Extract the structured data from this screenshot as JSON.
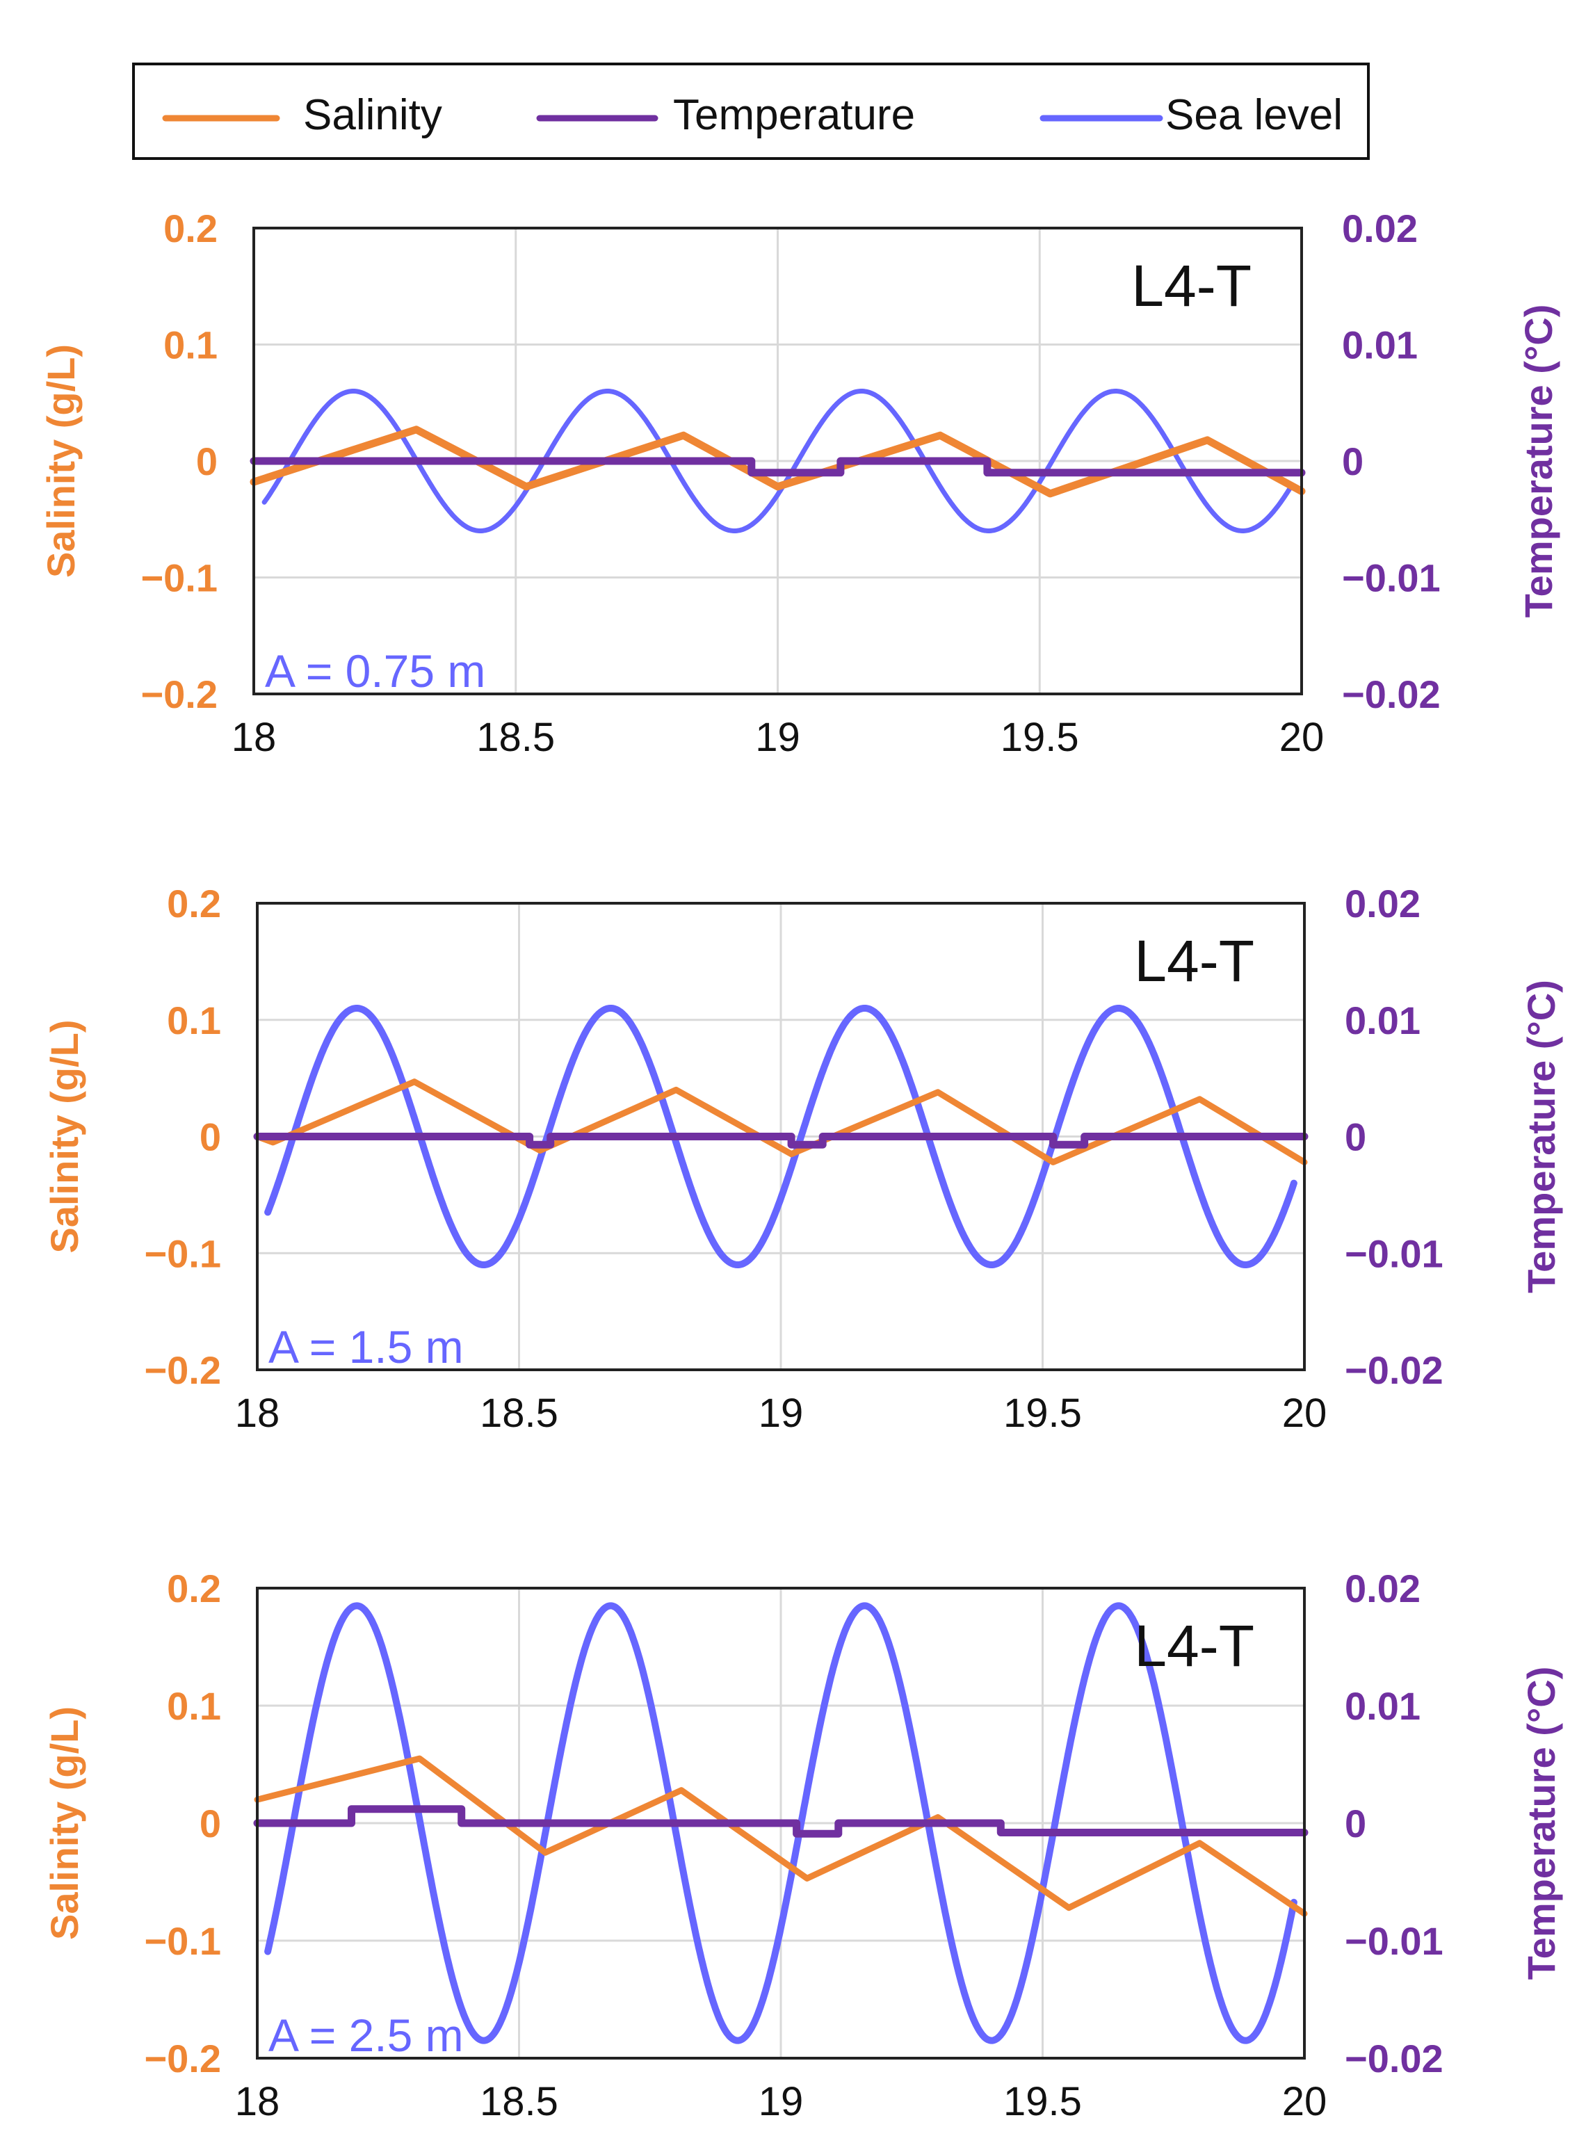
{
  "colors": {
    "salinity": "#ef8634",
    "temperature": "#7030a0",
    "sea_level": "#6666ff",
    "grid": "#d9d9d9",
    "frame": "#222222",
    "panel_label": "#111111"
  },
  "legend": {
    "items": [
      {
        "key": "salinity",
        "label": "Salinity"
      },
      {
        "key": "temperature",
        "label": "Temperature"
      },
      {
        "key": "sea_level",
        "label": "Sea level"
      }
    ]
  },
  "chart_data": [
    {
      "type": "line",
      "panel_label": "L4-T",
      "amplitude_label": "A = 0.75 m",
      "ylabel_left": "Salinity (g/L)",
      "ylabel_right": "Temperature (°C)",
      "xlim": [
        18,
        20
      ],
      "ylim_left": [
        -0.2,
        0.2
      ],
      "ylim_right": [
        -0.02,
        0.02
      ],
      "x_ticks": [
        "18",
        "18.5",
        "19",
        "19.5",
        "20"
      ],
      "left_ticks": [
        "0.2",
        "0.1",
        "0",
        "−0.1",
        "−0.2"
      ],
      "right_ticks": [
        "0.02",
        "0.01",
        "0",
        "−0.01",
        "−0.02"
      ],
      "grid": true,
      "series": [
        {
          "name": "Salinity",
          "axis": "left",
          "x": [
            18.0,
            18.31,
            18.52,
            18.82,
            19.0,
            19.31,
            19.52,
            19.82,
            20.0
          ],
          "y": [
            -0.018,
            0.027,
            -0.022,
            0.022,
            -0.022,
            0.022,
            -0.028,
            0.018,
            -0.026
          ]
        },
        {
          "name": "Temperature",
          "axis": "right",
          "x": [
            18.0,
            18.95,
            18.95,
            19.12,
            19.12,
            19.4,
            19.4,
            20.0
          ],
          "y": [
            0.0,
            0.0,
            -0.001,
            -0.001,
            0.0,
            0.0,
            -0.001,
            -0.001
          ]
        },
        {
          "name": "Sea level",
          "axis": "left",
          "amplitude": 0.06,
          "period": 0.485,
          "crest_x": 18.19,
          "x_range": [
            18.02,
            19.98
          ]
        }
      ]
    },
    {
      "type": "line",
      "panel_label": "L4-T",
      "amplitude_label": "A = 1.5 m",
      "ylabel_left": "Salinity (g/L)",
      "ylabel_right": "Temperature (°C)",
      "xlim": [
        18,
        20
      ],
      "ylim_left": [
        -0.2,
        0.2
      ],
      "ylim_right": [
        -0.02,
        0.02
      ],
      "x_ticks": [
        "18",
        "18.5",
        "19",
        "19.5",
        "20"
      ],
      "left_ticks": [
        "0.2",
        "0.1",
        "0",
        "−0.1",
        "−0.2"
      ],
      "right_ticks": [
        "0.02",
        "0.01",
        "0",
        "−0.01",
        "−0.02"
      ],
      "grid": true,
      "series": [
        {
          "name": "Salinity",
          "axis": "left",
          "x": [
            18.0,
            18.03,
            18.3,
            18.54,
            18.8,
            19.02,
            19.3,
            19.52,
            19.8,
            20.0
          ],
          "y": [
            0.0,
            -0.005,
            0.047,
            -0.012,
            0.04,
            -0.015,
            0.038,
            -0.022,
            0.032,
            -0.022
          ]
        },
        {
          "name": "Temperature",
          "axis": "right",
          "x": [
            18.0,
            18.52,
            18.52,
            18.56,
            18.56,
            19.02,
            19.02,
            19.08,
            19.08,
            19.52,
            19.52,
            19.58,
            19.58,
            20.0
          ],
          "y": [
            0.0,
            0.0,
            -0.0007,
            -0.0007,
            0.0,
            0.0,
            -0.0007,
            -0.0007,
            0.0,
            0.0,
            -0.0007,
            -0.0007,
            0.0,
            0.0
          ]
        },
        {
          "name": "Sea level",
          "axis": "left",
          "amplitude": 0.11,
          "period": 0.485,
          "crest_x": 18.19,
          "x_range": [
            18.02,
            19.98
          ]
        }
      ]
    },
    {
      "type": "line",
      "panel_label": "L4-T",
      "amplitude_label": "A = 2.5 m",
      "ylabel_left": "Salinity (g/L)",
      "ylabel_right": "Temperature (°C)",
      "xlim": [
        18,
        20
      ],
      "ylim_left": [
        -0.2,
        0.2
      ],
      "ylim_right": [
        -0.02,
        0.02
      ],
      "x_ticks": [
        "18",
        "18.5",
        "19",
        "19.5",
        "20"
      ],
      "left_ticks": [
        "0.2",
        "0.1",
        "0",
        "−0.1",
        "−0.2"
      ],
      "right_ticks": [
        "0.02",
        "0.01",
        "0",
        "−0.01",
        "−0.02"
      ],
      "grid": true,
      "series": [
        {
          "name": "Salinity",
          "axis": "left",
          "x": [
            18.0,
            18.31,
            18.55,
            18.81,
            19.05,
            19.3,
            19.55,
            19.8,
            20.0
          ],
          "y": [
            0.02,
            0.055,
            -0.025,
            0.028,
            -0.047,
            0.005,
            -0.072,
            -0.017,
            -0.077
          ]
        },
        {
          "name": "Temperature",
          "axis": "right",
          "x": [
            18.0,
            18.18,
            18.18,
            18.39,
            18.39,
            19.03,
            19.03,
            19.11,
            19.11,
            19.42,
            19.42,
            20.0
          ],
          "y": [
            0.0,
            0.0,
            0.0012,
            0.0012,
            0.0,
            0.0,
            -0.0009,
            -0.0009,
            0.0,
            0.0,
            -0.0008,
            -0.0008
          ]
        },
        {
          "name": "Sea level",
          "axis": "left",
          "amplitude": 0.185,
          "period": 0.485,
          "crest_x": 18.19,
          "x_range": [
            18.02,
            19.98
          ]
        }
      ]
    }
  ]
}
